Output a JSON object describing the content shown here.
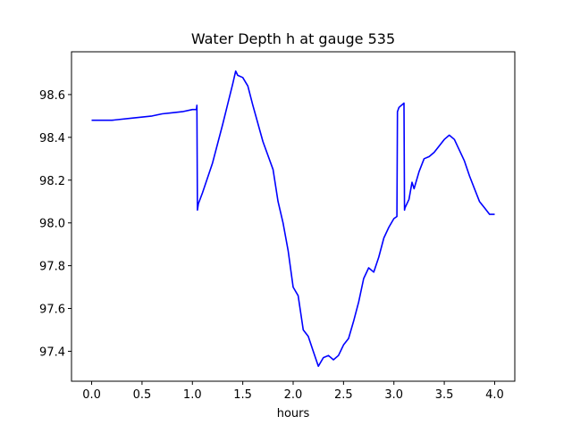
{
  "chart_data": {
    "type": "line",
    "title": "Water Depth h at gauge 535",
    "xlabel": "hours",
    "ylabel": "",
    "xlim": [
      -0.2,
      4.2
    ],
    "ylim": [
      97.26,
      98.8
    ],
    "grid": false,
    "x_ticks": [
      0.0,
      0.5,
      1.0,
      1.5,
      2.0,
      2.5,
      3.0,
      3.5,
      4.0
    ],
    "x_tick_labels": [
      "0.0",
      "0.5",
      "1.0",
      "1.5",
      "2.0",
      "2.5",
      "3.0",
      "3.5",
      "4.0"
    ],
    "y_ticks": [
      97.4,
      97.6,
      97.8,
      98.0,
      98.2,
      98.4,
      98.6
    ],
    "y_tick_labels": [
      "97.4",
      "97.6",
      "97.8",
      "98.0",
      "98.2",
      "98.4",
      "98.6"
    ],
    "series": [
      {
        "color": "#0000ff",
        "x": [
          0.0,
          0.2,
          0.4,
          0.6,
          0.7,
          0.8,
          0.9,
          1.0,
          1.04,
          1.045,
          1.05,
          1.06,
          1.1,
          1.2,
          1.3,
          1.4,
          1.43,
          1.45,
          1.5,
          1.55,
          1.6,
          1.7,
          1.8,
          1.85,
          1.9,
          1.95,
          2.0,
          2.05,
          2.1,
          2.15,
          2.2,
          2.25,
          2.3,
          2.35,
          2.4,
          2.45,
          2.5,
          2.55,
          2.6,
          2.65,
          2.7,
          2.75,
          2.8,
          2.85,
          2.9,
          2.95,
          3.0,
          3.03,
          3.035,
          3.05,
          3.1,
          3.105,
          3.11,
          3.15,
          3.18,
          3.2,
          3.25,
          3.3,
          3.35,
          3.4,
          3.45,
          3.5,
          3.55,
          3.6,
          3.65,
          3.7,
          3.75,
          3.8,
          3.85,
          3.9,
          3.95,
          4.0
        ],
        "y": [
          98.48,
          98.48,
          98.49,
          98.5,
          98.51,
          98.515,
          98.52,
          98.53,
          98.53,
          98.55,
          98.06,
          98.09,
          98.14,
          98.28,
          98.46,
          98.65,
          98.71,
          98.69,
          98.68,
          98.64,
          98.55,
          98.38,
          98.25,
          98.1,
          98.0,
          97.87,
          97.7,
          97.66,
          97.5,
          97.47,
          97.4,
          97.33,
          97.37,
          97.38,
          97.36,
          97.38,
          97.43,
          97.46,
          97.54,
          97.63,
          97.74,
          97.79,
          97.77,
          97.84,
          97.93,
          97.98,
          98.02,
          98.03,
          98.52,
          98.54,
          98.56,
          98.06,
          98.07,
          98.11,
          98.19,
          98.16,
          98.24,
          98.3,
          98.31,
          98.33,
          98.36,
          98.39,
          98.41,
          98.39,
          98.34,
          98.29,
          98.22,
          98.16,
          98.1,
          98.07,
          98.04,
          98.04
        ]
      }
    ]
  }
}
